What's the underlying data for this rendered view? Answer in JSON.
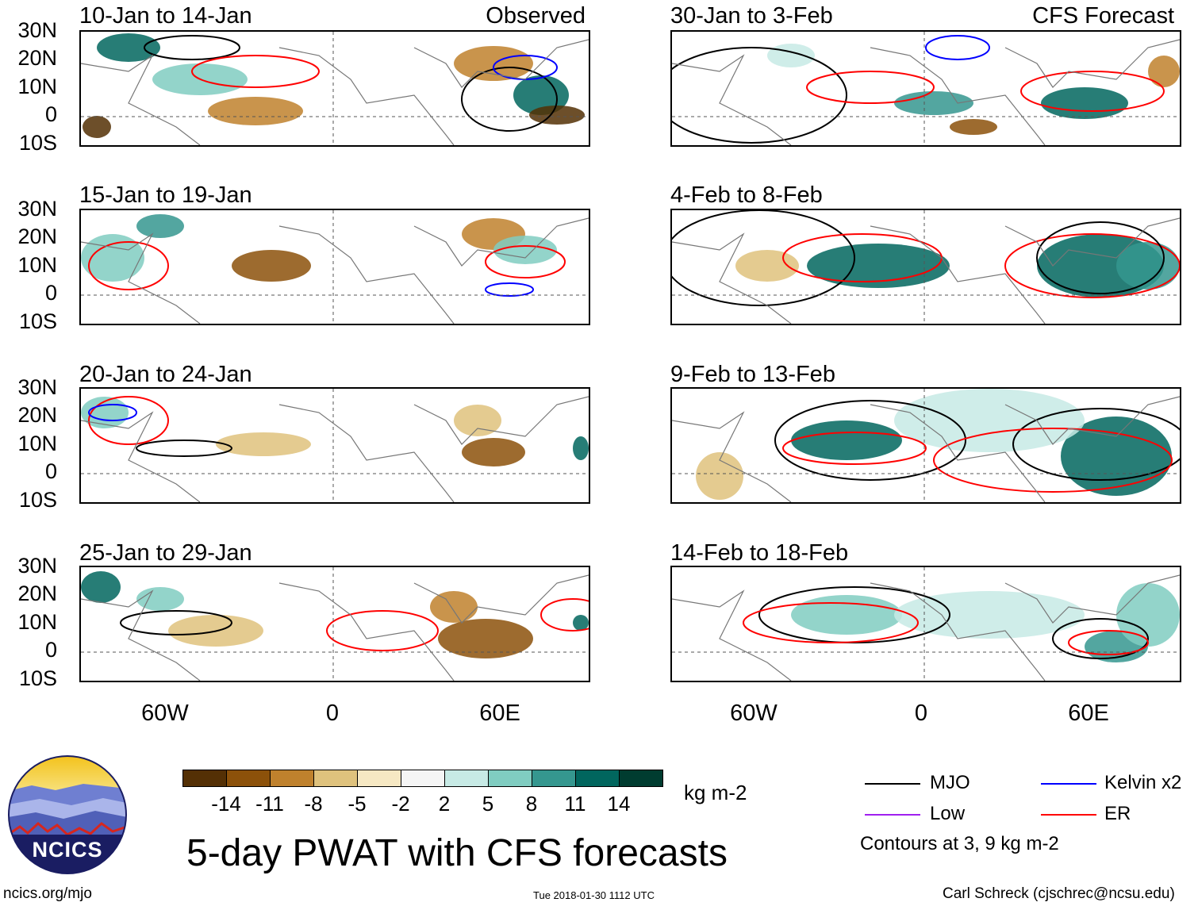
{
  "panels": [
    {
      "title": "10-Jan to 14-Jan",
      "tag": "Observed"
    },
    {
      "title": "15-Jan to 19-Jan",
      "tag": ""
    },
    {
      "title": "20-Jan to 24-Jan",
      "tag": ""
    },
    {
      "title": "25-Jan to 29-Jan",
      "tag": ""
    },
    {
      "title": "30-Jan to 3-Feb",
      "tag": "CFS Forecast"
    },
    {
      "title": "4-Feb to 8-Feb",
      "tag": ""
    },
    {
      "title": "9-Feb to 13-Feb",
      "tag": ""
    },
    {
      "title": "14-Feb to 18-Feb",
      "tag": ""
    }
  ],
  "lat_labels": [
    "30N",
    "20N",
    "10N",
    "0",
    "10S"
  ],
  "lon_labels": [
    "60W",
    "0",
    "60E"
  ],
  "colorbar": {
    "colors": [
      "#543005",
      "#8c510a",
      "#bf812d",
      "#dfc27d",
      "#f6e8c3",
      "#f5f5f5",
      "#c7eae5",
      "#80cdc1",
      "#35978f",
      "#01665e",
      "#003c30"
    ],
    "labels": [
      "-14",
      "-11",
      "-8",
      "-5",
      "-2",
      "2",
      "5",
      "8",
      "11",
      "14"
    ],
    "units": "kg m-2"
  },
  "legend": {
    "mjo": {
      "label": "MJO",
      "color": "#000000"
    },
    "kelvin": {
      "label": "Kelvin x2",
      "color": "#0000ff"
    },
    "low": {
      "label": "Low",
      "color": "#a020f0"
    },
    "er": {
      "label": "ER",
      "color": "#ff0000"
    },
    "note": "Contours at 3, 9 kg m-2"
  },
  "main_title": "5-day PWAT with CFS forecasts",
  "logo_text": "NCICS",
  "footer": {
    "left": "ncics.org/mjo",
    "center": "Tue 2018-01-30 1112 UTC",
    "right": "Carl Schreck (cjschrec@ncsu.edu)"
  }
}
